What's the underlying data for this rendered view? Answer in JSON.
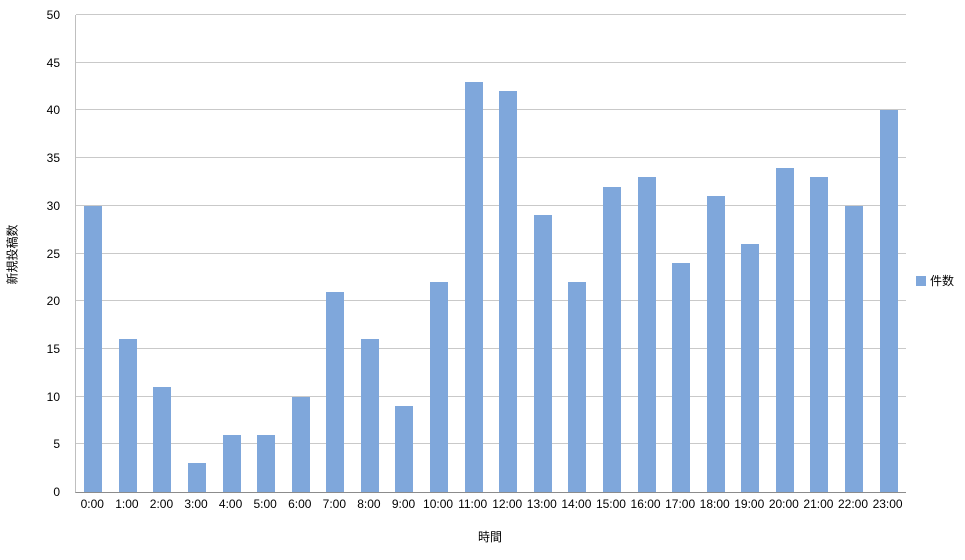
{
  "chart_data": {
    "type": "bar",
    "title": "",
    "categories": [
      "0:00",
      "1:00",
      "2:00",
      "3:00",
      "4:00",
      "5:00",
      "6:00",
      "7:00",
      "8:00",
      "9:00",
      "10:00",
      "11:00",
      "12:00",
      "13:00",
      "14:00",
      "15:00",
      "16:00",
      "17:00",
      "18:00",
      "19:00",
      "20:00",
      "21:00",
      "22:00",
      "23:00"
    ],
    "values": [
      30,
      16,
      11,
      3,
      6,
      6,
      10,
      21,
      16,
      9,
      22,
      43,
      42,
      29,
      22,
      32,
      33,
      24,
      31,
      26,
      34,
      33,
      30,
      40
    ],
    "xlabel": "時間",
    "ylabel": "新規投稿数",
    "ylim": [
      0,
      50
    ],
    "ytick_step": 5,
    "grid": true,
    "legend": {
      "position": "right",
      "entries": [
        "件数"
      ]
    },
    "colors": {
      "bar": "#7fa7db",
      "gridline": "#c9c9c9",
      "axis": "#8c8c8c",
      "text": "#000000"
    }
  }
}
